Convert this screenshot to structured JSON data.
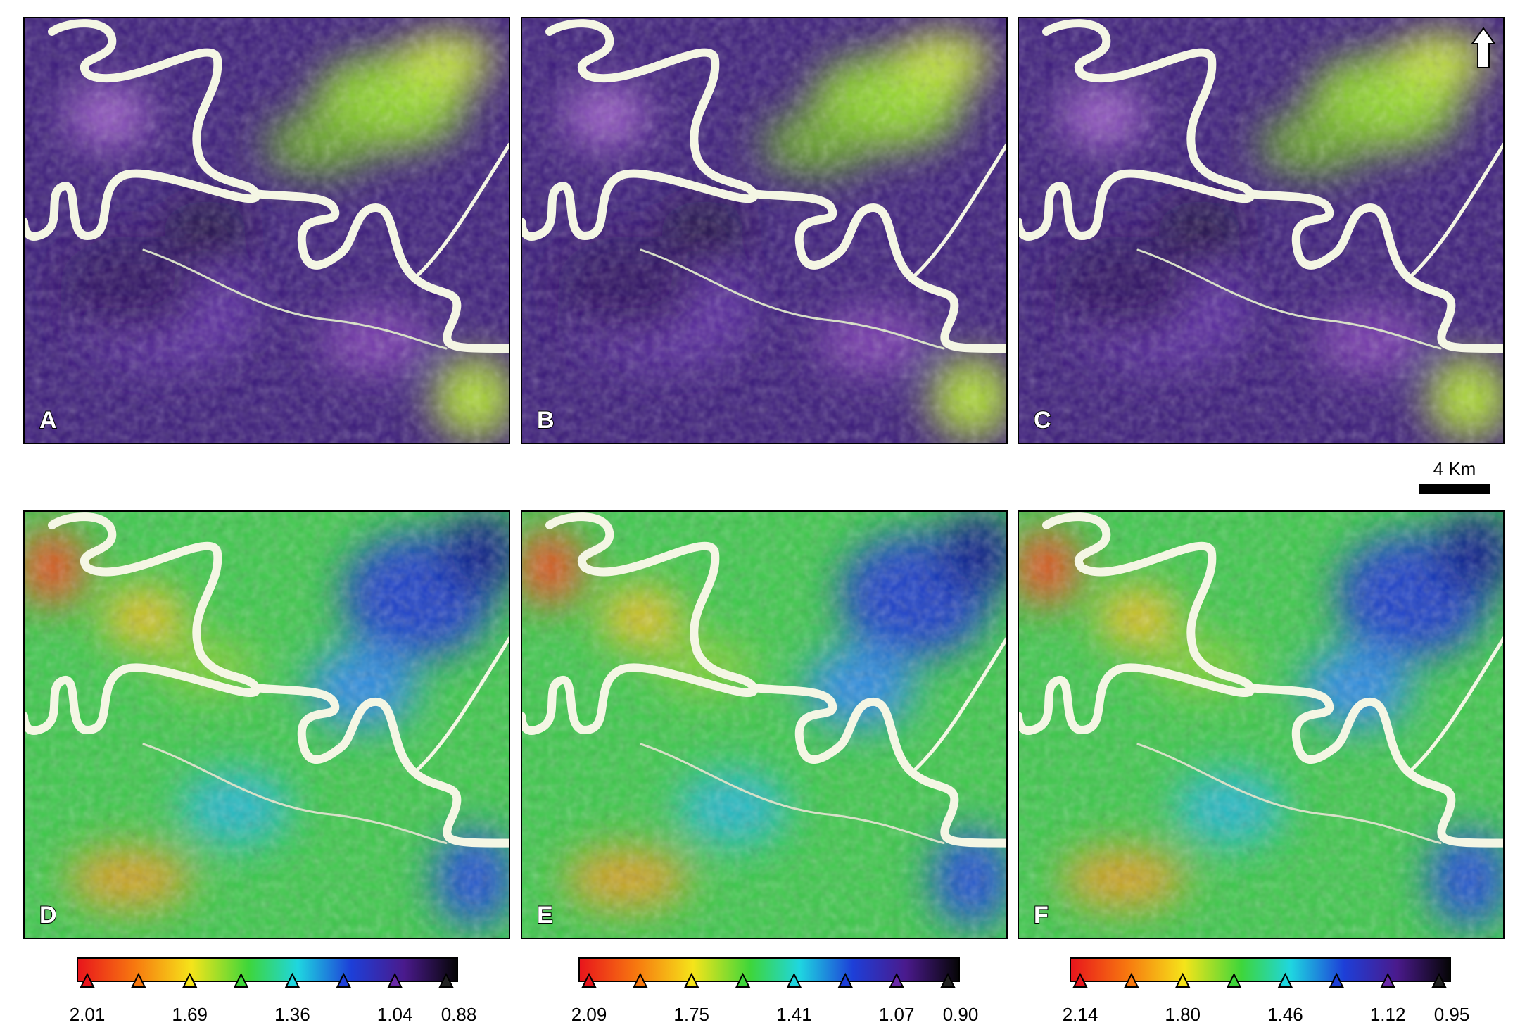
{
  "panels": [
    {
      "label": "A"
    },
    {
      "label": "B"
    },
    {
      "label": "C"
    },
    {
      "label": "D"
    },
    {
      "label": "E"
    },
    {
      "label": "F"
    }
  ],
  "colorbars": [
    {
      "labels": [
        "2.01",
        "1.69",
        "1.36",
        "1.04",
        "0.88"
      ]
    },
    {
      "labels": [
        "2.09",
        "1.75",
        "1.41",
        "1.07",
        "0.90"
      ]
    },
    {
      "labels": [
        "2.14",
        "1.80",
        "1.46",
        "1.12",
        "0.95"
      ]
    }
  ],
  "scale_bar": {
    "label": "4 Km"
  }
}
